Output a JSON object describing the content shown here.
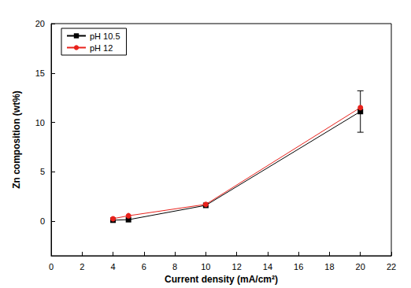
{
  "chart_data": {
    "type": "line",
    "x_label": "Current density (mA/cm²)",
    "y_label": "Zn composition (wt%)",
    "xlim": [
      0,
      22
    ],
    "xticks": [
      0,
      2,
      4,
      6,
      8,
      10,
      12,
      14,
      16,
      18,
      20,
      22
    ],
    "ylim": [
      -3.5,
      20
    ],
    "yticks": [
      0,
      5,
      10,
      15,
      20
    ],
    "grid": false,
    "legend": "upper left",
    "series": [
      {
        "name": "pH 10.5",
        "color": "#000000",
        "marker": "square",
        "line_style": "solid",
        "x": [
          4,
          5,
          10,
          20
        ],
        "values": [
          0.1,
          0.15,
          1.6,
          11.1
        ],
        "errors": [
          null,
          null,
          null,
          2.1
        ]
      },
      {
        "name": "pH 12",
        "color": "#e8221c",
        "marker": "circle",
        "line_style": "solid",
        "x": [
          4,
          5,
          10,
          20
        ],
        "values": [
          0.25,
          0.55,
          1.7,
          11.5
        ],
        "errors": [
          null,
          null,
          null,
          null
        ]
      }
    ]
  }
}
